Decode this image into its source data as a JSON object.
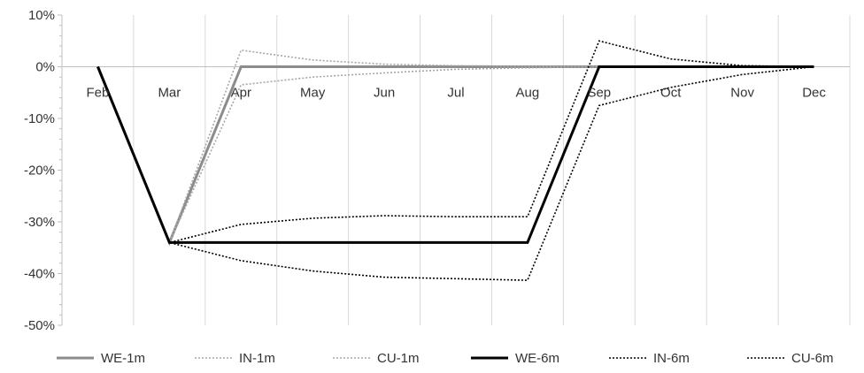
{
  "chart_data": {
    "type": "line",
    "categories": [
      "Feb",
      "Mar",
      "Apr",
      "May",
      "Jun",
      "Jul",
      "Aug",
      "Sep",
      "Oct",
      "Nov",
      "Dec"
    ],
    "y_tick_labels": [
      "10%",
      "0%",
      "-10%",
      "-20%",
      "-30%",
      "-40%",
      "-50%"
    ],
    "y_ticks": [
      10,
      0,
      -10,
      -20,
      -30,
      -40,
      -50
    ],
    "ylim": [
      -50,
      10
    ],
    "grid": "vertical",
    "legend_position": "bottom",
    "series": [
      {
        "name": "WE-1m",
        "color": "#8c8c8c",
        "style": "solid-thick",
        "values": [
          0,
          -34,
          0,
          0,
          0,
          0,
          0,
          0,
          0,
          0,
          0
        ]
      },
      {
        "name": "IN-1m",
        "color": "#a6a6a6",
        "style": "dotted",
        "values": [
          0,
          -34,
          3.2,
          1.3,
          0.5,
          0.2,
          0.1,
          0,
          0,
          0,
          0
        ]
      },
      {
        "name": "CU-1m",
        "color": "#a6a6a6",
        "style": "dotted",
        "values": [
          0,
          -34,
          -3.5,
          -2.0,
          -1.2,
          -0.5,
          -0.2,
          0,
          0,
          0,
          0
        ]
      },
      {
        "name": "WE-6m",
        "color": "#000000",
        "style": "solid-thick",
        "values": [
          0,
          -34,
          -34,
          -34,
          -34,
          -34,
          -34,
          0,
          0,
          0,
          0
        ]
      },
      {
        "name": "IN-6m",
        "color": "#000000",
        "style": "dotted",
        "values": [
          0,
          -34,
          -30.5,
          -29.3,
          -28.8,
          -29.0,
          -29.0,
          5.0,
          1.5,
          0.2,
          0
        ]
      },
      {
        "name": "CU-6m",
        "color": "#000000",
        "style": "dotted",
        "values": [
          0,
          -34,
          -37.5,
          -39.5,
          -40.7,
          -41.0,
          -41.3,
          -7.5,
          -4.0,
          -1.5,
          0
        ]
      }
    ]
  }
}
